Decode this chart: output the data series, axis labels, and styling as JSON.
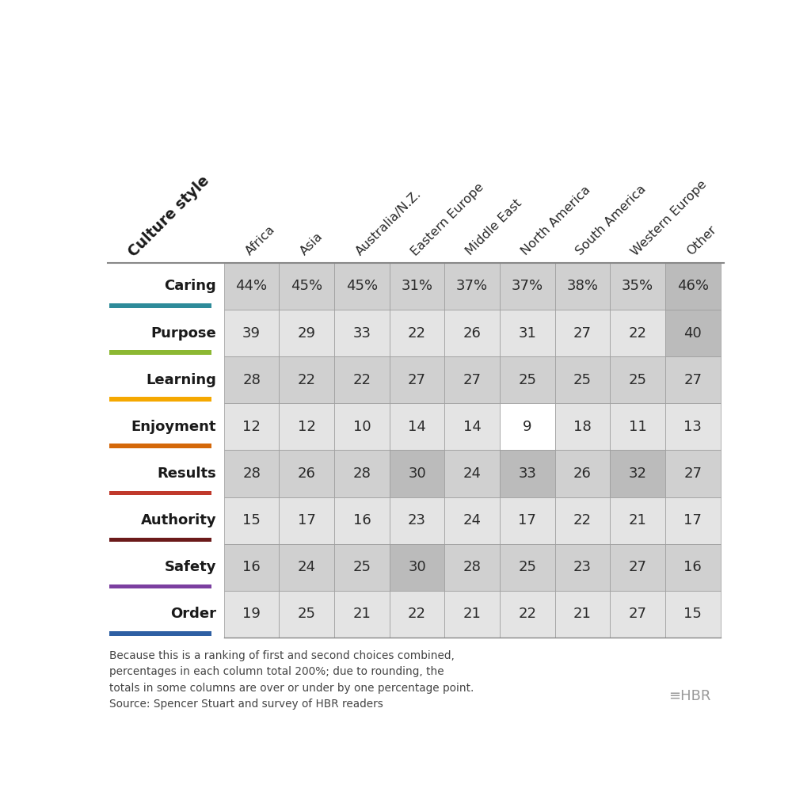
{
  "title": "Culture style",
  "col_headers": [
    "Africa",
    "Asia",
    "Australia/N.Z.",
    "Eastern Europe",
    "Middle East",
    "North America",
    "South America",
    "Western Europe",
    "Other"
  ],
  "row_labels": [
    "Caring",
    "Purpose",
    "Learning",
    "Enjoyment",
    "Results",
    "Authority",
    "Safety",
    "Order"
  ],
  "row_colors": [
    "#2E8B9A",
    "#8CB832",
    "#F5A800",
    "#D4680A",
    "#C0392B",
    "#6B1A1A",
    "#7B3FA0",
    "#2E5FA3"
  ],
  "data": [
    [
      "44%",
      "45%",
      "45%",
      "31%",
      "37%",
      "37%",
      "38%",
      "35%",
      "46%"
    ],
    [
      "39",
      "29",
      "33",
      "22",
      "26",
      "31",
      "27",
      "22",
      "40"
    ],
    [
      "28",
      "22",
      "22",
      "27",
      "27",
      "25",
      "25",
      "25",
      "27"
    ],
    [
      "12",
      "12",
      "10",
      "14",
      "14",
      "9",
      "18",
      "11",
      "13"
    ],
    [
      "28",
      "26",
      "28",
      "30",
      "24",
      "33",
      "26",
      "32",
      "27"
    ],
    [
      "15",
      "17",
      "16",
      "23",
      "24",
      "17",
      "22",
      "21",
      "17"
    ],
    [
      "16",
      "24",
      "25",
      "30",
      "28",
      "25",
      "23",
      "27",
      "16"
    ],
    [
      "19",
      "25",
      "21",
      "22",
      "21",
      "22",
      "21",
      "27",
      "15"
    ]
  ],
  "cell_shading": [
    [
      1,
      1,
      1,
      1,
      1,
      1,
      1,
      1,
      2
    ],
    [
      1,
      1,
      1,
      1,
      1,
      1,
      1,
      1,
      2
    ],
    [
      1,
      1,
      1,
      1,
      1,
      1,
      1,
      1,
      1
    ],
    [
      1,
      1,
      1,
      1,
      1,
      0,
      1,
      1,
      1
    ],
    [
      1,
      1,
      1,
      2,
      1,
      2,
      1,
      2,
      1
    ],
    [
      1,
      1,
      1,
      1,
      1,
      1,
      1,
      1,
      1
    ],
    [
      1,
      1,
      1,
      2,
      1,
      1,
      1,
      1,
      1
    ],
    [
      1,
      1,
      1,
      1,
      1,
      1,
      1,
      1,
      1
    ]
  ],
  "footnote": "Because this is a ranking of first and second choices combined,\npercentages in each column total 200%; due to rounding, the\ntotals in some columns are over or under by one percentage point.\nSource: Spencer Stuart and survey of HBR readers",
  "bg_color": "#FFFFFF",
  "cell_bg_even": "#D0D0D0",
  "cell_bg_odd": "#E4E4E4",
  "cell_bg_white": "#FFFFFF",
  "cell_bg_darker": "#BBBBBB"
}
